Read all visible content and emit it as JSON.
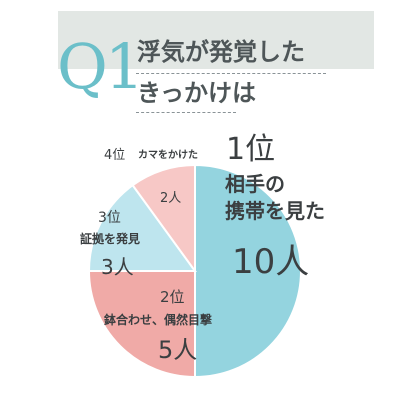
{
  "header": {
    "prefix": "Q1",
    "title_line1": "浮気が発覚した",
    "title_line2": "きっかけは"
  },
  "chart_data": {
    "type": "pie",
    "unit": "人",
    "slices": [
      {
        "rank": "1位",
        "label": "相手の携帯を見た",
        "label_lines": [
          "相手の",
          "携帯を見た"
        ],
        "value": 10,
        "color": "#94d4df"
      },
      {
        "rank": "2位",
        "label": "鉢合わせ、偶然目撃",
        "value": 5,
        "color": "#f0aaa7"
      },
      {
        "rank": "3位",
        "label": "証拠を発見",
        "value": 3,
        "color": "#bee5ee"
      },
      {
        "rank": "4位",
        "label": "カマをかけた",
        "value": 2,
        "color": "#f7c8c6"
      }
    ],
    "value_labels": [
      "10人",
      "5人",
      "3人",
      "2人"
    ]
  }
}
